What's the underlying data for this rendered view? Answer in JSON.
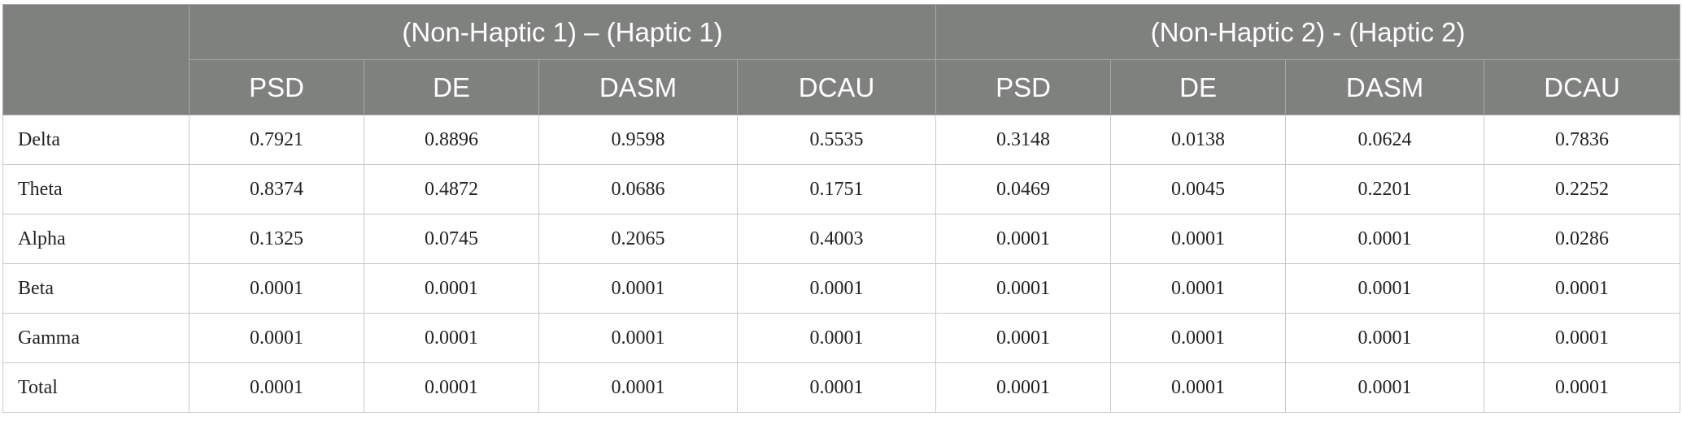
{
  "header": {
    "groups": [
      "(Non-Haptic 1) – (Haptic 1)",
      "(Non-Haptic 2) - (Haptic 2)"
    ],
    "columns": [
      "PSD",
      "DE",
      "DASM",
      "DCAU",
      "PSD",
      "DE",
      "DASM",
      "DCAU"
    ]
  },
  "table": {
    "rows": [
      {
        "label": "Delta",
        "values": [
          "0.7921",
          "0.8896",
          "0.9598",
          "0.5535",
          "0.3148",
          "0.0138",
          "0.0624",
          "0.7836"
        ]
      },
      {
        "label": "Theta",
        "values": [
          "0.8374",
          "0.4872",
          "0.0686",
          "0.1751",
          "0.0469",
          "0.0045",
          "0.2201",
          "0.2252"
        ]
      },
      {
        "label": "Alpha",
        "values": [
          "0.1325",
          "0.0745",
          "0.2065",
          "0.4003",
          "0.0001",
          "0.0001",
          "0.0001",
          "0.0286"
        ]
      },
      {
        "label": "Beta",
        "values": [
          "0.0001",
          "0.0001",
          "0.0001",
          "0.0001",
          "0.0001",
          "0.0001",
          "0.0001",
          "0.0001"
        ]
      },
      {
        "label": "Gamma",
        "values": [
          "0.0001",
          "0.0001",
          "0.0001",
          "0.0001",
          "0.0001",
          "0.0001",
          "0.0001",
          "0.0001"
        ]
      },
      {
        "label": "Total",
        "values": [
          "0.0001",
          "0.0001",
          "0.0001",
          "0.0001",
          "0.0001",
          "0.0001",
          "0.0001",
          "0.0001"
        ]
      }
    ]
  }
}
